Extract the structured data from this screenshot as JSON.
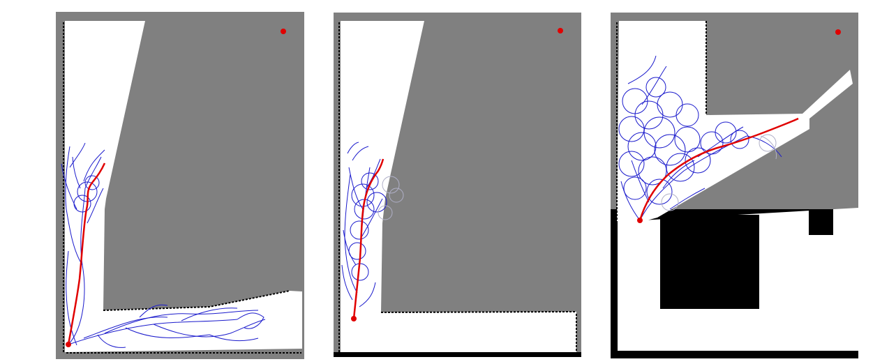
{
  "figure": {
    "panels": [
      {
        "id": "panel-1",
        "unknown_color": "#808080",
        "free_color": "#ffffff",
        "obstacle_color": "#000000",
        "tree_color": "#1a1acc",
        "path_color": "#e00000"
      },
      {
        "id": "panel-2",
        "unknown_color": "#808080",
        "free_color": "#ffffff",
        "obstacle_color": "#000000",
        "tree_color": "#1a1acc",
        "path_color": "#e00000"
      },
      {
        "id": "panel-3",
        "unknown_color": "#808080",
        "free_color": "#ffffff",
        "obstacle_color": "#000000",
        "tree_color": "#1a1acc",
        "path_color": "#e00000"
      }
    ]
  }
}
